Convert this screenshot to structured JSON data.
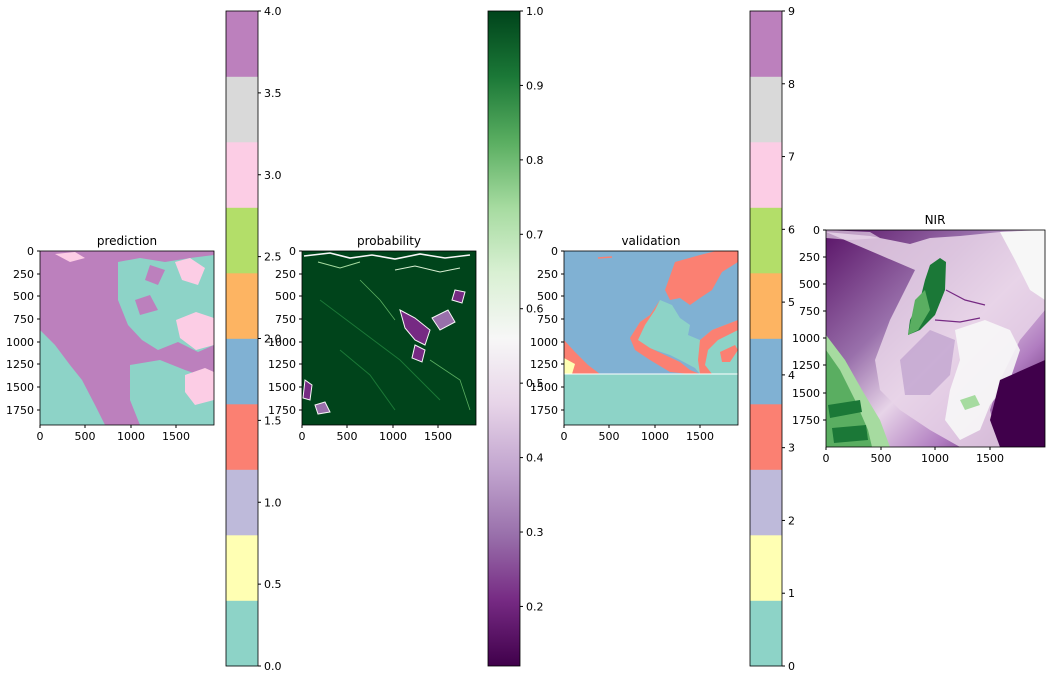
{
  "chart_data": [
    {
      "type": "heatmap",
      "title": "prediction",
      "xticks": [
        0,
        500,
        1000,
        1500
      ],
      "yticks": [
        0,
        250,
        500,
        750,
        1000,
        1250,
        1500,
        1750
      ],
      "xlim": [
        0,
        1920
      ],
      "ylim": [
        1920,
        0
      ],
      "colormap": "Set3 (discrete, 10 classes)"
    },
    {
      "type": "colorbar",
      "ticks": [
        "0.0",
        "0.5",
        "1.0",
        "1.5",
        "2.0",
        "2.5",
        "3.0",
        "3.5",
        "4.0"
      ],
      "range": [
        0,
        4
      ],
      "colors": [
        "#8dd3c7",
        "#ffffb3",
        "#bebada",
        "#fb8072",
        "#80b1d3",
        "#fdb462",
        "#b3de69",
        "#fccde5",
        "#d9d9d9",
        "#bc80bd"
      ]
    },
    {
      "type": "heatmap",
      "title": "probability",
      "xticks": [
        0,
        500,
        1000,
        1500
      ],
      "yticks": [
        0,
        250,
        500,
        750,
        1000,
        1250,
        1500,
        1750
      ],
      "xlim": [
        0,
        1920
      ],
      "ylim": [
        1920,
        0
      ],
      "colormap": "PRGn"
    },
    {
      "type": "colorbar",
      "ticks": [
        "0.2",
        "0.3",
        "0.4",
        "0.5",
        "0.6",
        "0.7",
        "0.8",
        "0.9",
        "1.0"
      ],
      "range": [
        0.12,
        1.0
      ],
      "colors": [
        "#40004b",
        "#762a83",
        "#9970ab",
        "#c2a5cf",
        "#e7d4e8",
        "#f7f7f7",
        "#d9f0d3",
        "#a6dba0",
        "#5aae61",
        "#1b7837",
        "#00441b"
      ]
    },
    {
      "type": "heatmap",
      "title": "validation",
      "xticks": [
        0,
        500,
        1000,
        1500
      ],
      "yticks": [
        0,
        250,
        500,
        750,
        1000,
        1250,
        1500,
        1750
      ],
      "xlim": [
        0,
        1920
      ],
      "ylim": [
        1920,
        0
      ],
      "colormap": "Set3 (discrete, 10 classes)"
    },
    {
      "type": "colorbar",
      "ticks": [
        "0",
        "1",
        "2",
        "3",
        "4",
        "5",
        "6",
        "7",
        "8",
        "9"
      ],
      "range": [
        0,
        9
      ],
      "colors": [
        "#8dd3c7",
        "#ffffb3",
        "#bebada",
        "#fb8072",
        "#80b1d3",
        "#fdb462",
        "#b3de69",
        "#fccde5",
        "#d9d9d9",
        "#bc80bd"
      ]
    },
    {
      "type": "heatmap",
      "title": "NIR",
      "xticks": [
        0,
        500,
        1000,
        1500
      ],
      "yticks": [
        0,
        250,
        500,
        750,
        1000,
        1250,
        1500,
        1750
      ],
      "xlim": [
        0,
        2000
      ],
      "ylim": [
        2000,
        0
      ],
      "colormap": "PRGn"
    }
  ]
}
